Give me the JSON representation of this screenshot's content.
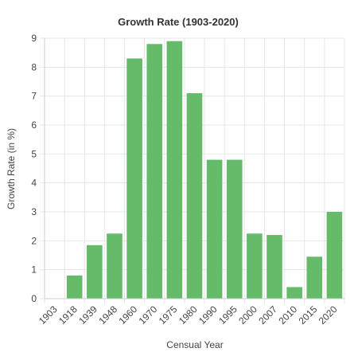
{
  "chart_data": {
    "type": "bar",
    "title": "Growth Rate (1903-2020)",
    "xlabel": "Censual Year",
    "ylabel": "Growth Rate (in %)",
    "categories": [
      "1903",
      "1918",
      "1939",
      "1948",
      "1960",
      "1970",
      "1975",
      "1980",
      "1990",
      "1995",
      "2000",
      "2007",
      "2010",
      "2015",
      "2020"
    ],
    "values": [
      0,
      0.8,
      1.85,
      2.25,
      8.3,
      8.8,
      8.9,
      7.1,
      4.8,
      4.8,
      2.25,
      2.2,
      0.4,
      1.45,
      3.0
    ],
    "ylim": [
      0,
      9
    ],
    "yticks": [
      "0",
      "1",
      "2",
      "3",
      "4",
      "5",
      "6",
      "7",
      "8",
      "9"
    ],
    "grid": true,
    "legend": "none",
    "colors": {
      "bar": "#66bb6a",
      "grid": "#e6e6e6"
    }
  }
}
